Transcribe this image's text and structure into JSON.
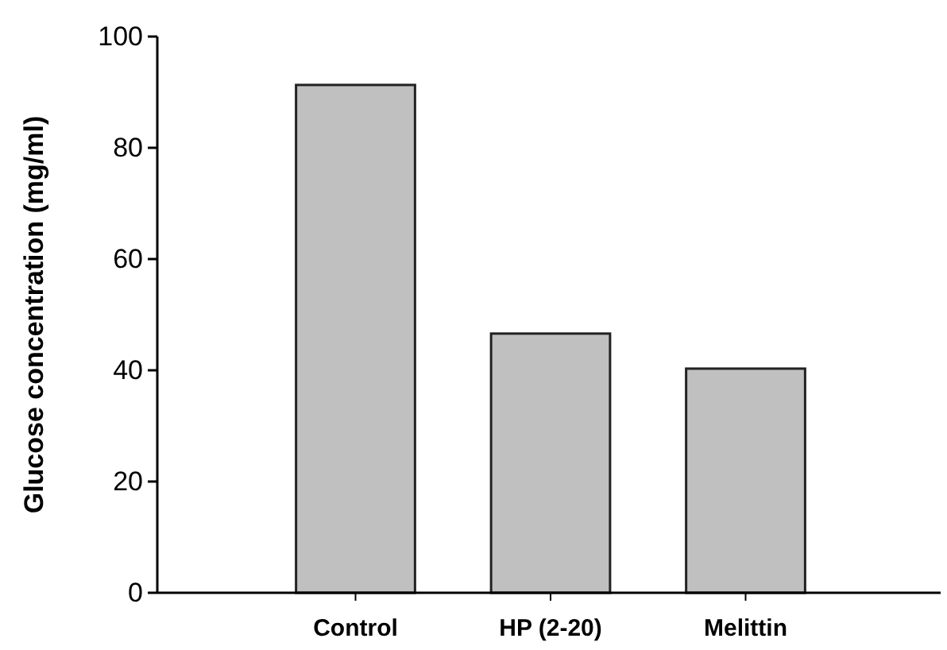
{
  "chart_data": {
    "type": "bar",
    "ylabel": "Glucose concentration (mg/ml)",
    "categories": [
      null,
      "Control",
      "HP (2-20)",
      "Melittin",
      null
    ],
    "values": [
      null,
      91.3,
      46.6,
      40.3,
      null
    ],
    "color": "#c0c0c0",
    "ylim": [
      0,
      100
    ],
    "yticks": [
      0,
      20,
      40,
      60,
      80,
      100
    ],
    "grid": false
  }
}
